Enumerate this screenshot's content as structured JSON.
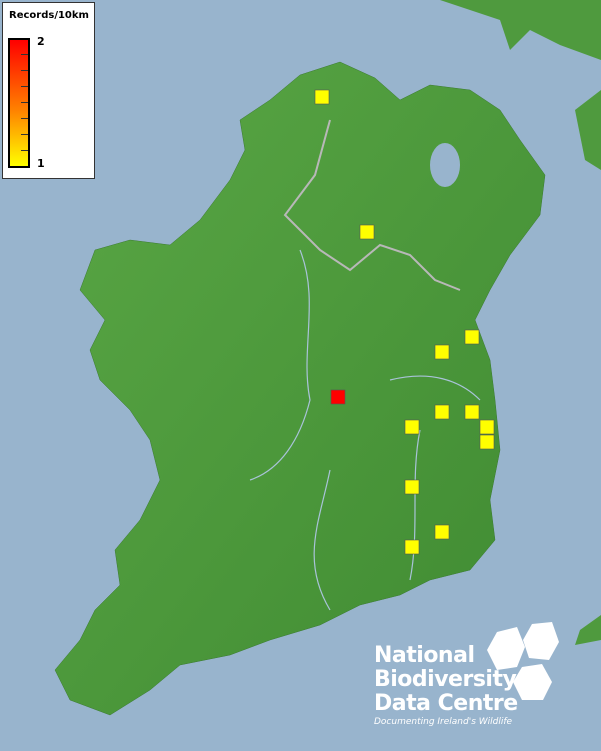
{
  "legend": {
    "title": "Records/10km",
    "max_label": "2",
    "min_label": "1",
    "scale_colors": [
      "#ffff00",
      "#ff0000"
    ]
  },
  "records": {
    "values": [
      1,
      1,
      1,
      1,
      2,
      1,
      1,
      1,
      1,
      1,
      1,
      1,
      1
    ],
    "colors": {
      "1": "#ffff00",
      "2": "#ff0000"
    }
  },
  "colors": {
    "sea": "#98b4cd",
    "land": "#4f9a3e",
    "rivers": "#a9c3d9"
  },
  "logo": {
    "line1": "National",
    "line2": "Biodiversity",
    "line3": "Data Centre",
    "tagline": "Documenting Ireland's Wildlife"
  }
}
